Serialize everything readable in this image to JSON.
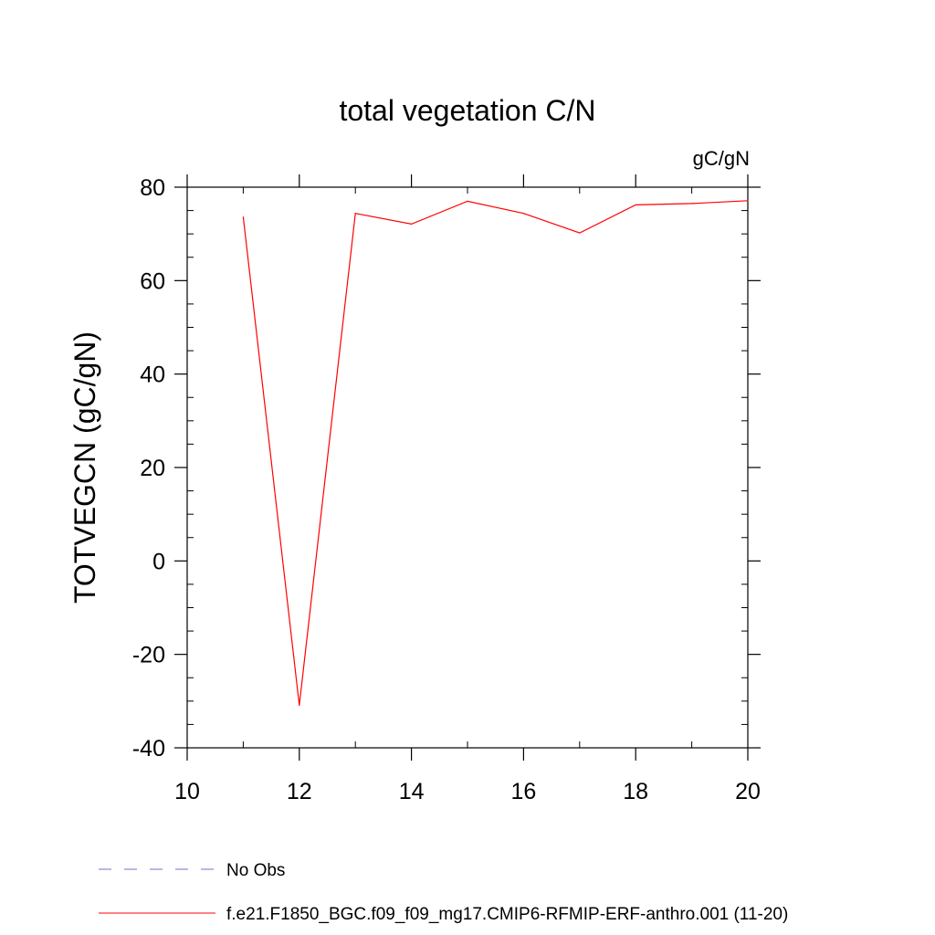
{
  "chart_data": {
    "type": "line",
    "title": "total vegetation C/N",
    "units_label": "gC/gN",
    "ylabel": "TOTVEGCN  (gC/gN)",
    "xlabel": "",
    "xlim": [
      10,
      20
    ],
    "ylim": [
      -40,
      80
    ],
    "x_ticks": [
      10,
      12,
      14,
      16,
      18,
      20
    ],
    "y_ticks": [
      -40,
      -20,
      0,
      20,
      40,
      60,
      80
    ],
    "grid": false,
    "legend_position": "bottom",
    "series": [
      {
        "name": "f.e21.F1850_BGC.f09_f09_mg17.CMIP6-RFMIP-ERF-anthro.001 (11-20)",
        "color": "#ff0000",
        "style": "solid",
        "x": [
          11,
          12,
          13,
          14,
          15,
          16,
          17,
          18,
          19,
          20
        ],
        "y": [
          73.6,
          -30.9,
          74.4,
          72.1,
          77.0,
          74.4,
          70.2,
          76.2,
          76.5,
          77.1
        ]
      }
    ],
    "legend": [
      {
        "label": "No Obs",
        "color": "#7b68c9",
        "style": "dashed"
      },
      {
        "label": "f.e21.F1850_BGC.f09_f09_mg17.CMIP6-RFMIP-ERF-anthro.001 (11-20)",
        "color": "#ff0000",
        "style": "solid"
      }
    ]
  }
}
